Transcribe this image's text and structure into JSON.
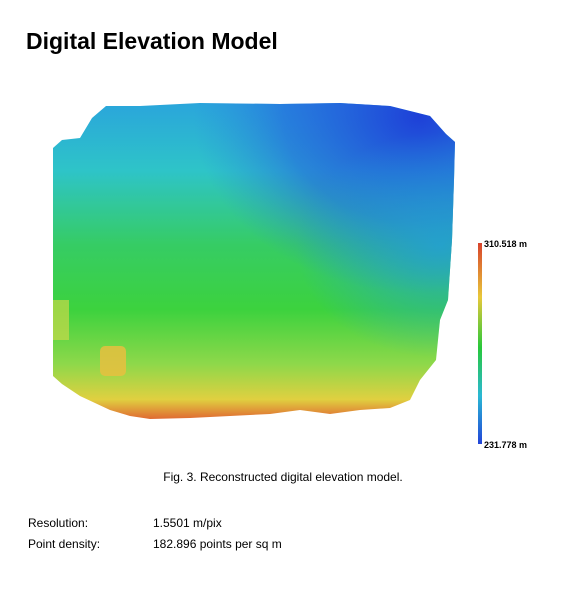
{
  "title": "Digital Elevation Model",
  "scale": {
    "max_label": "310.518 m",
    "min_label": "231.778 m",
    "colors": [
      "#d8432c",
      "#e8c83a",
      "#28c83a",
      "#2ab8d4",
      "#2244d8"
    ]
  },
  "caption": "Fig. 3. Reconstructed digital elevation model.",
  "metadata": [
    {
      "label": "Resolution:",
      "value": "1.5501 m/pix"
    },
    {
      "label": "Point density:",
      "value": "182.896 points per sq m"
    }
  ]
}
